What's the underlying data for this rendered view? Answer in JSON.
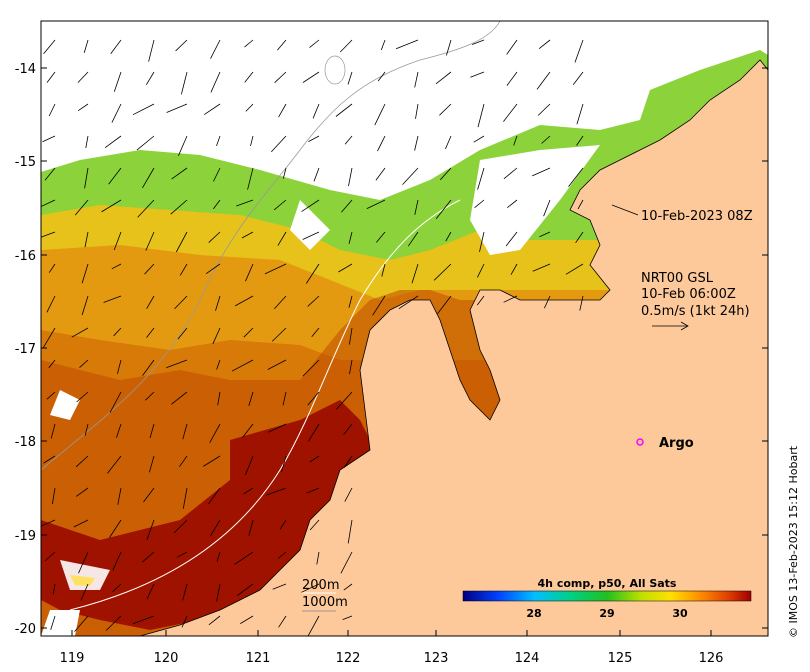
{
  "timestamp_label": "10-Feb-2023 08Z",
  "current_legend": {
    "line1": "NRT00 GSL",
    "line2": "10-Feb 06:00Z",
    "line3": "0.5m/s (1kt 24h)"
  },
  "argo_label": "Argo",
  "depth_legend": {
    "d200": "200m",
    "d1000": "1000m"
  },
  "colorbar": {
    "title": "4h comp, p50, All Sats",
    "ticks": [
      "28",
      "29",
      "30"
    ]
  },
  "credit": "© IMOS 13-Feb-2023 15:12 Hobart",
  "x_ticks": [
    "119",
    "120",
    "121",
    "122",
    "123",
    "124",
    "125",
    "126"
  ],
  "y_ticks": [
    "-14",
    "-15",
    "-16",
    "-17",
    "-18",
    "-19",
    "-20"
  ],
  "colors": {
    "land": "#fdc99a",
    "hot": "#a01000",
    "warm": "#e08a00",
    "mid": "#f0c010",
    "cool": "#60c030",
    "argo": "#ff00ff"
  }
}
